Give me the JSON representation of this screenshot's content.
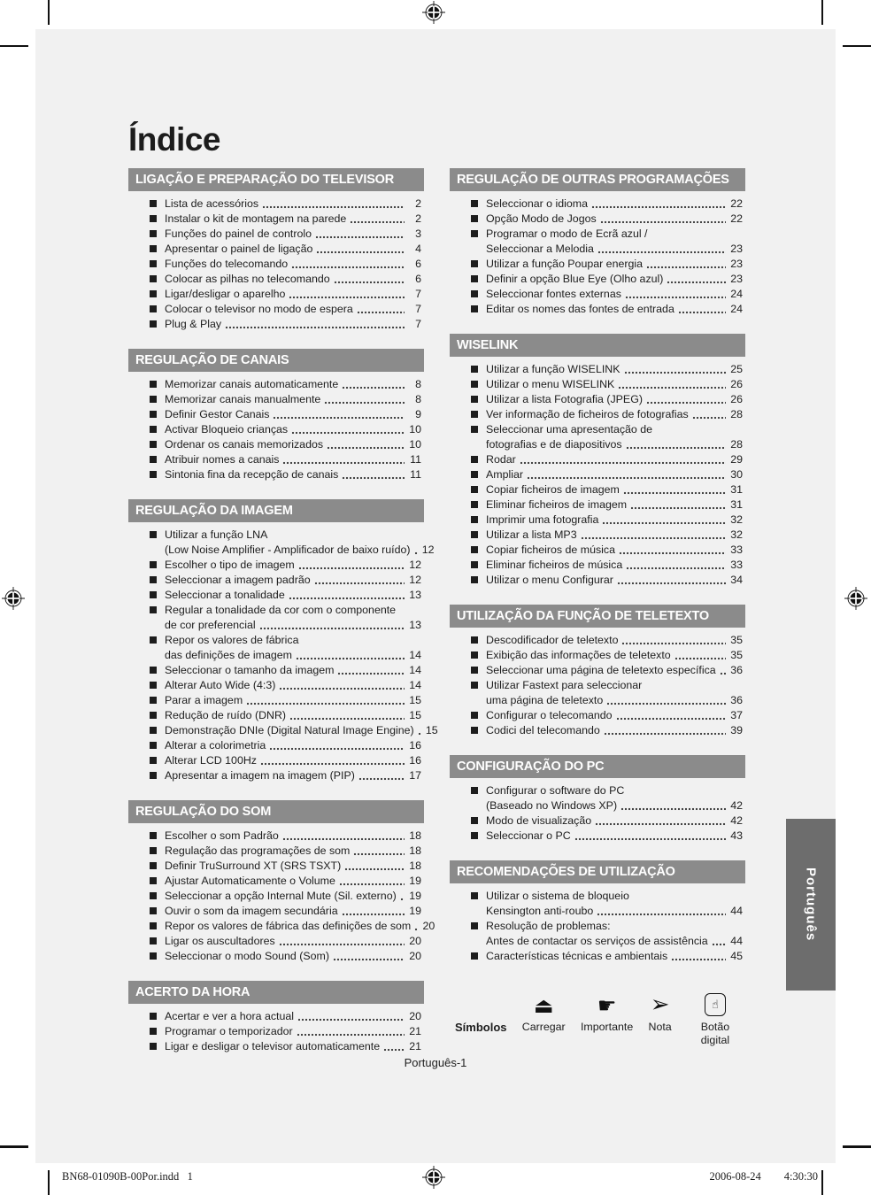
{
  "page_title": "Índice",
  "side_tab_label": "Português",
  "page_footer": "Português-1",
  "print_slug": {
    "file": "BN68-01090B-00Por.indd   1",
    "date": "2006-08-24",
    "time": "4:30:30"
  },
  "colors": {
    "page_bg": "#f1f1f1",
    "header_bar": "#8b8b8b",
    "side_tab_bg": "#6d6d6d",
    "text": "#1d1d1d"
  },
  "toc": {
    "left": [
      {
        "title": "LIGAÇÃO E PREPARAÇÃO DO TELEVISOR",
        "items": [
          {
            "lines": [
              "Lista de acessórios"
            ],
            "page": "2"
          },
          {
            "lines": [
              "Instalar o kit de montagem na parede"
            ],
            "page": "2"
          },
          {
            "lines": [
              "Funções do painel de controlo"
            ],
            "page": "3"
          },
          {
            "lines": [
              "Apresentar o painel de ligação"
            ],
            "page": "4"
          },
          {
            "lines": [
              "Funções do telecomando"
            ],
            "page": "6"
          },
          {
            "lines": [
              "Colocar as pilhas no telecomando"
            ],
            "page": "6"
          },
          {
            "lines": [
              "Ligar/desligar o aparelho"
            ],
            "page": "7"
          },
          {
            "lines": [
              "Colocar o televisor no modo de espera"
            ],
            "page": "7"
          },
          {
            "lines": [
              "Plug & Play"
            ],
            "page": "7"
          }
        ]
      },
      {
        "title": "REGULAÇÃO DE CANAIS",
        "items": [
          {
            "lines": [
              "Memorizar canais automaticamente"
            ],
            "page": "8"
          },
          {
            "lines": [
              "Memorizar canais manualmente"
            ],
            "page": "8"
          },
          {
            "lines": [
              "Definir Gestor Canais"
            ],
            "page": "9"
          },
          {
            "lines": [
              "Activar Bloqueio crianças"
            ],
            "page": "10"
          },
          {
            "lines": [
              "Ordenar os canais memorizados"
            ],
            "page": "10"
          },
          {
            "lines": [
              "Atribuir nomes a canais"
            ],
            "page": "11"
          },
          {
            "lines": [
              "Sintonia fina da recepção de canais"
            ],
            "page": "11"
          }
        ]
      },
      {
        "title": "REGULAÇÃO DA IMAGEM",
        "items": [
          {
            "lines": [
              "Utilizar a função LNA",
              "(Low Noise Amplifier - Amplificador de baixo ruído)"
            ],
            "page": "12"
          },
          {
            "lines": [
              "Escolher o tipo de imagem"
            ],
            "page": "12"
          },
          {
            "lines": [
              "Seleccionar a imagem padrão"
            ],
            "page": "12"
          },
          {
            "lines": [
              "Seleccionar a tonalidade"
            ],
            "page": "13"
          },
          {
            "lines": [
              "Regular a tonalidade da cor com o componente",
              "de cor preferencial"
            ],
            "page": "13"
          },
          {
            "lines": [
              "Repor os valores de fábrica",
              "das definições de imagem"
            ],
            "page": "14"
          },
          {
            "lines": [
              "Seleccionar o tamanho da imagem"
            ],
            "page": "14"
          },
          {
            "lines": [
              "Alterar Auto Wide (4:3)"
            ],
            "page": "14"
          },
          {
            "lines": [
              "Parar a imagem"
            ],
            "page": "15"
          },
          {
            "lines": [
              "Redução de ruído (DNR)"
            ],
            "page": "15"
          },
          {
            "lines": [
              "Demonstração DNIe (Digital Natural Image Engine)"
            ],
            "page": "15"
          },
          {
            "lines": [
              "Alterar a colorimetria"
            ],
            "page": "16"
          },
          {
            "lines": [
              "Alterar LCD 100Hz"
            ],
            "page": "16"
          },
          {
            "lines": [
              "Apresentar a imagem na imagem (PIP)"
            ],
            "page": "17"
          }
        ]
      },
      {
        "title": "REGULAÇÃO DO SOM",
        "items": [
          {
            "lines": [
              "Escolher o som Padrão"
            ],
            "page": "18"
          },
          {
            "lines": [
              "Regulação das programações de som"
            ],
            "page": "18"
          },
          {
            "lines": [
              "Definir TruSurround XT (SRS TSXT)"
            ],
            "page": "18"
          },
          {
            "lines": [
              "Ajustar Automaticamente o Volume"
            ],
            "page": "19"
          },
          {
            "lines": [
              "Seleccionar a opção Internal Mute (Sil. externo)"
            ],
            "page": "19"
          },
          {
            "lines": [
              "Ouvir o som da imagem secundária"
            ],
            "page": "19"
          },
          {
            "lines": [
              "Repor os valores de fábrica das definições de som"
            ],
            "page": "20"
          },
          {
            "lines": [
              "Ligar os auscultadores"
            ],
            "page": "20"
          },
          {
            "lines": [
              "Seleccionar o modo Sound (Som)"
            ],
            "page": "20"
          }
        ]
      },
      {
        "title": "ACERTO DA HORA",
        "items": [
          {
            "lines": [
              "Acertar e ver a hora actual"
            ],
            "page": "20"
          },
          {
            "lines": [
              "Programar o temporizador"
            ],
            "page": "21"
          },
          {
            "lines": [
              "Ligar e desligar o televisor automaticamente"
            ],
            "page": "21"
          }
        ]
      }
    ],
    "right": [
      {
        "title": "REGULAÇÃO DE OUTRAS PROGRAMAÇÕES",
        "items": [
          {
            "lines": [
              "Seleccionar o idioma"
            ],
            "page": "22"
          },
          {
            "lines": [
              "Opção Modo de Jogos"
            ],
            "page": "22"
          },
          {
            "lines": [
              "Programar o modo de Ecrã azul /",
              "Seleccionar a Melodia"
            ],
            "page": "23"
          },
          {
            "lines": [
              "Utilizar a função Poupar energia"
            ],
            "page": "23"
          },
          {
            "lines": [
              "Definir a opção Blue Eye (Olho azul)"
            ],
            "page": "23"
          },
          {
            "lines": [
              "Seleccionar fontes externas"
            ],
            "page": "24"
          },
          {
            "lines": [
              "Editar os nomes das fontes de entrada"
            ],
            "page": "24"
          }
        ]
      },
      {
        "title": "WISELINK",
        "items": [
          {
            "lines": [
              "Utilizar a função WISELINK"
            ],
            "page": "25"
          },
          {
            "lines": [
              "Utilizar o menu WISELINK"
            ],
            "page": "26"
          },
          {
            "lines": [
              "Utilizar a lista Fotografia (JPEG)"
            ],
            "page": "26"
          },
          {
            "lines": [
              "Ver informação de ficheiros de fotografias"
            ],
            "page": "28"
          },
          {
            "lines": [
              "Seleccionar uma apresentação de",
              "fotografias e de diapositivos"
            ],
            "page": "28"
          },
          {
            "lines": [
              "Rodar"
            ],
            "page": "29"
          },
          {
            "lines": [
              "Ampliar"
            ],
            "page": "30"
          },
          {
            "lines": [
              "Copiar ficheiros de imagem"
            ],
            "page": "31"
          },
          {
            "lines": [
              "Eliminar ficheiros de imagem"
            ],
            "page": "31"
          },
          {
            "lines": [
              "Imprimir uma fotografia"
            ],
            "page": "32"
          },
          {
            "lines": [
              "Utilizar a lista MP3"
            ],
            "page": "32"
          },
          {
            "lines": [
              "Copiar ficheiros de música"
            ],
            "page": "33"
          },
          {
            "lines": [
              "Eliminar ficheiros de música"
            ],
            "page": "33"
          },
          {
            "lines": [
              "Utilizar o menu Configurar"
            ],
            "page": "34"
          }
        ]
      },
      {
        "title": "UTILIZAÇÃO DA FUNÇÃO DE TELETEXTO",
        "items": [
          {
            "lines": [
              "Descodificador de teletexto"
            ],
            "page": "35"
          },
          {
            "lines": [
              "Exibição das informações de teletexto"
            ],
            "page": "35"
          },
          {
            "lines": [
              "Seleccionar uma página de teletexto específica"
            ],
            "page": "36"
          },
          {
            "lines": [
              "Utilizar Fastext para seleccionar",
              "uma página de teletexto"
            ],
            "page": "36"
          },
          {
            "lines": [
              "Configurar o telecomando"
            ],
            "page": "37"
          },
          {
            "lines": [
              "Codici del telecomando"
            ],
            "page": "39"
          }
        ]
      },
      {
        "title": "CONFIGURAÇÃO DO PC",
        "items": [
          {
            "lines": [
              "Configurar o software do PC",
              "(Baseado no Windows XP)"
            ],
            "page": "42"
          },
          {
            "lines": [
              "Modo de visualização"
            ],
            "page": "42"
          },
          {
            "lines": [
              "Seleccionar o PC"
            ],
            "page": "43"
          }
        ]
      },
      {
        "title": "RECOMENDAÇÕES DE UTILIZAÇÃO",
        "items": [
          {
            "lines": [
              "Utilizar o sistema de bloqueio",
              "Kensington anti-roubo"
            ],
            "page": "44"
          },
          {
            "lines": [
              "Resolução de problemas:",
              "Antes de contactar os serviços de assistência"
            ],
            "page": "44"
          },
          {
            "lines": [
              "Características técnicas e ambientais"
            ],
            "page": "45"
          }
        ]
      }
    ]
  },
  "symbols": {
    "label": "Símbolos",
    "items": [
      {
        "icon": "press-icon",
        "glyph": "⏏",
        "label": "Carregar"
      },
      {
        "icon": "pointing-hand-icon",
        "glyph": "☛",
        "label": "Importante"
      },
      {
        "icon": "arrow-icon",
        "glyph": "➢",
        "label": "Nota"
      },
      {
        "icon": "digital-button-icon",
        "glyph": "☝",
        "label": "Botão digital"
      }
    ]
  }
}
